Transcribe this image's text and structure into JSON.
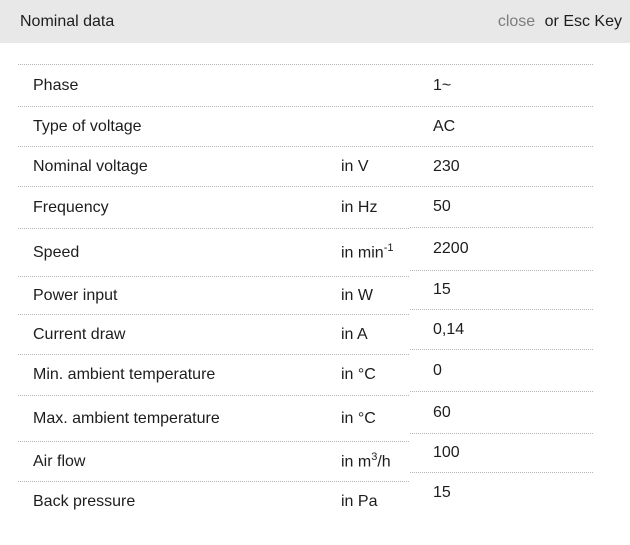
{
  "header": {
    "title": "Nominal data",
    "close_label": "close",
    "esc_hint": "or Esc Key"
  },
  "colors": {
    "header_bg": "#e8e8e8",
    "text": "#1d1d1d",
    "close_link": "#7d7d7d",
    "divider": "#b3b3b3",
    "page_bg": "#ffffff"
  },
  "table": {
    "rows": [
      {
        "label": "Phase",
        "unit_base": "",
        "unit_sup": "",
        "unit_tail": "",
        "value": "1~"
      },
      {
        "label": "Type of voltage",
        "unit_base": "",
        "unit_sup": "",
        "unit_tail": "",
        "value": "AC"
      },
      {
        "label": "Nominal voltage",
        "unit_base": "in V",
        "unit_sup": "",
        "unit_tail": "",
        "value": "230"
      },
      {
        "label": "Frequency",
        "unit_base": "in Hz",
        "unit_sup": "",
        "unit_tail": "",
        "value": "50"
      },
      {
        "label": "Speed",
        "unit_base": "in min",
        "unit_sup": "-1",
        "unit_tail": "",
        "value": "2200"
      },
      {
        "label": "Power input",
        "unit_base": "in W",
        "unit_sup": "",
        "unit_tail": "",
        "value": "15"
      },
      {
        "label": "Current draw",
        "unit_base": "in A",
        "unit_sup": "",
        "unit_tail": "",
        "value": "0,14"
      },
      {
        "label": "Min. ambient temperature",
        "unit_base": "in °C",
        "unit_sup": "",
        "unit_tail": "",
        "value": "0"
      },
      {
        "label": "Max. ambient temperature",
        "unit_base": "in °C",
        "unit_sup": "",
        "unit_tail": "",
        "value": "60"
      },
      {
        "label": "Air flow",
        "unit_base": "in m",
        "unit_sup": "3",
        "unit_tail": "/h",
        "value": "100"
      },
      {
        "label": "Back pressure",
        "unit_base": "in Pa",
        "unit_sup": "",
        "unit_tail": "",
        "value": "15"
      }
    ]
  }
}
